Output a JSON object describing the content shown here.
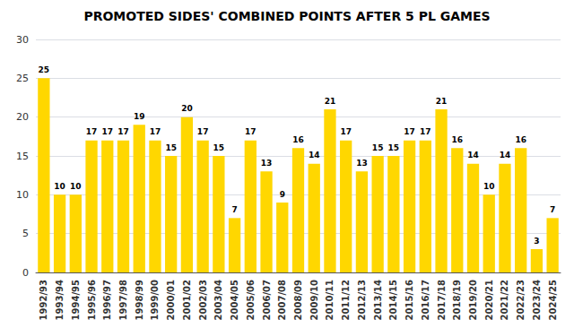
{
  "chart_data": {
    "type": "bar",
    "title": "PROMOTED SIDES' COMBINED POINTS AFTER 5 PL GAMES",
    "categories": [
      "1992/93",
      "1993/94",
      "1994/95",
      "1995/96",
      "1996/97",
      "1997/98",
      "1998/99",
      "1999/00",
      "2000/01",
      "2001/02",
      "2002/03",
      "2003/04",
      "2004/05",
      "2005/06",
      "2006/07",
      "2007/08",
      "2008/09",
      "2009/10",
      "2010/11",
      "2011/12",
      "2012/13",
      "2013/14",
      "2014/15",
      "2015/16",
      "2016/17",
      "2017/18",
      "2018/19",
      "2019/20",
      "2020/21",
      "2021/22",
      "2022/23",
      "2023/24",
      "2024/25"
    ],
    "values": [
      25,
      10,
      10,
      17,
      17,
      17,
      19,
      17,
      15,
      20,
      17,
      15,
      7,
      17,
      13,
      9,
      16,
      14,
      21,
      17,
      13,
      15,
      15,
      17,
      17,
      21,
      16,
      14,
      10,
      14,
      16,
      3,
      7
    ],
    "color": "#FFD700",
    "ylim": [
      0,
      30
    ],
    "yticks": [
      0,
      5,
      10,
      15,
      20,
      25,
      30
    ],
    "grid": true,
    "data_labels": true
  }
}
